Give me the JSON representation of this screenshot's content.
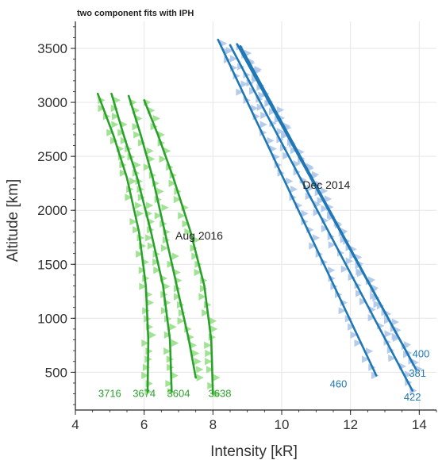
{
  "colors": {
    "aug_line": "#2ca02c",
    "aug_data": "#98df8a",
    "dec_line": "#1f77b4",
    "dec_data": "#aec7e8",
    "grid": "#e6e6e6",
    "axis": "#222222"
  },
  "chart_data": {
    "type": "line",
    "title": "two component fits with IPH",
    "xlabel": "Intensity [kR]",
    "ylabel": "Altitude [km]",
    "xlim": [
      4,
      14.5
    ],
    "ylim": [
      150,
      3750
    ],
    "x_ticks": [
      4,
      6,
      8,
      10,
      12,
      14
    ],
    "y_ticks": [
      500,
      1000,
      1500,
      2000,
      2500,
      3000,
      3500
    ],
    "grid": true,
    "legend": "none",
    "annotations": [
      {
        "text": "Aug 2016",
        "x": 7.6,
        "y": 1730,
        "color": "#222222"
      },
      {
        "text": "Dec 2014",
        "x": 11.3,
        "y": 2200,
        "color": "#222222"
      }
    ],
    "series": [
      {
        "name": "3716",
        "group": "Aug 2016",
        "label_x": 5.0,
        "label_y": 270,
        "fit": [
          [
            4.65,
            3080
          ],
          [
            5.1,
            2700
          ],
          [
            5.5,
            2300
          ],
          [
            5.85,
            1800
          ],
          [
            6.05,
            1300
          ],
          [
            6.12,
            800
          ],
          [
            6.1,
            320
          ]
        ]
      },
      {
        "name": "3674",
        "group": "Aug 2016",
        "label_x": 6.0,
        "label_y": 270,
        "fit": [
          [
            5.05,
            3080
          ],
          [
            5.4,
            2700
          ],
          [
            5.8,
            2300
          ],
          [
            6.2,
            1800
          ],
          [
            6.55,
            1300
          ],
          [
            6.75,
            800
          ],
          [
            6.8,
            320
          ]
        ]
      },
      {
        "name": "3604",
        "group": "Aug 2016",
        "label_x": 7.0,
        "label_y": 270,
        "fit": [
          [
            5.55,
            3060
          ],
          [
            5.9,
            2700
          ],
          [
            6.25,
            2300
          ],
          [
            6.6,
            1800
          ],
          [
            6.95,
            1300
          ],
          [
            7.3,
            800
          ],
          [
            7.5,
            450
          ]
        ]
      },
      {
        "name": "3638",
        "group": "Aug 2016",
        "label_x": 8.2,
        "label_y": 270,
        "fit": [
          [
            6.0,
            3020
          ],
          [
            6.4,
            2700
          ],
          [
            6.85,
            2300
          ],
          [
            7.35,
            1800
          ],
          [
            7.75,
            1300
          ],
          [
            7.95,
            800
          ],
          [
            8.0,
            300
          ]
        ]
      },
      {
        "name": "460",
        "group": "Dec 2014",
        "label_x": 11.65,
        "label_y": 360,
        "fit": [
          [
            8.15,
            3580
          ],
          [
            12.75,
            470
          ]
        ]
      },
      {
        "name": "422",
        "group": "Dec 2014",
        "label_x": 13.8,
        "label_y": 240,
        "fit": [
          [
            8.5,
            3530
          ],
          [
            13.8,
            330
          ]
        ]
      },
      {
        "name": "381",
        "group": "Dec 2014",
        "label_x": 13.95,
        "label_y": 460,
        "fit": [
          [
            8.8,
            3520
          ],
          [
            13.9,
            530
          ]
        ]
      },
      {
        "name": "400",
        "group": "Dec 2014",
        "label_x": 14.05,
        "label_y": 640,
        "fit": [
          [
            8.7,
            3540
          ],
          [
            13.8,
            590
          ]
        ]
      }
    ]
  }
}
